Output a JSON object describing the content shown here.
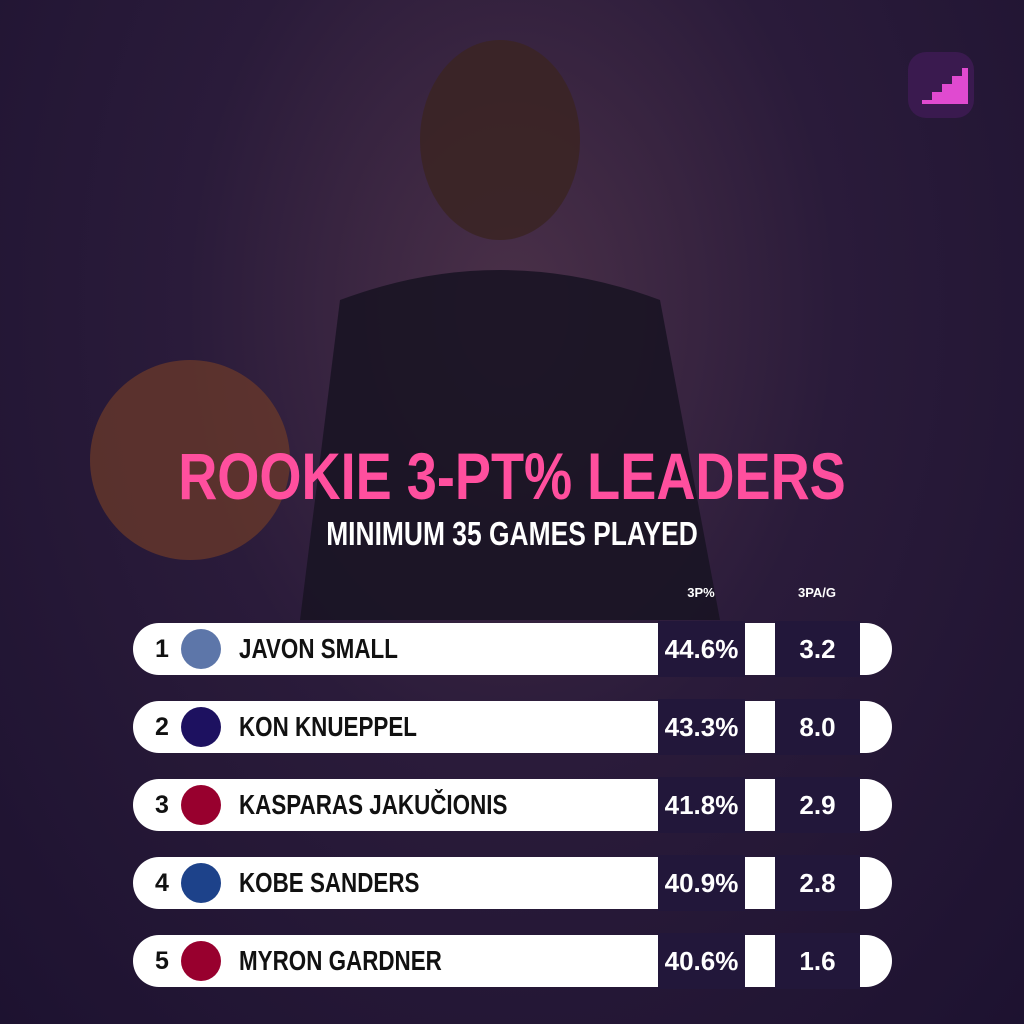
{
  "header": {
    "title": "ROOKIE 3-PT% LEADERS",
    "subtitle": "MINIMUM 35 GAMES PLAYED"
  },
  "table": {
    "columns": [
      "3P%",
      "3PA/G"
    ],
    "rows": [
      {
        "rank": "1",
        "name": "JAVON SMALL",
        "team_color": "#5d76a9",
        "pct": "44.6%",
        "attempts": "3.2"
      },
      {
        "rank": "2",
        "name": "KON KNUEPPEL",
        "team_color": "#1d1160",
        "pct": "43.3%",
        "attempts": "8.0"
      },
      {
        "rank": "3",
        "name": "KASPARAS JAKUČIONIS",
        "team_color": "#98002e",
        "pct": "41.8%",
        "attempts": "2.9"
      },
      {
        "rank": "4",
        "name": "KOBE SANDERS",
        "team_color": "#1d428a",
        "pct": "40.9%",
        "attempts": "2.8"
      },
      {
        "rank": "5",
        "name": "MYRON GARDNER",
        "team_color": "#98002e",
        "pct": "40.6%",
        "attempts": "1.6"
      }
    ]
  }
}
